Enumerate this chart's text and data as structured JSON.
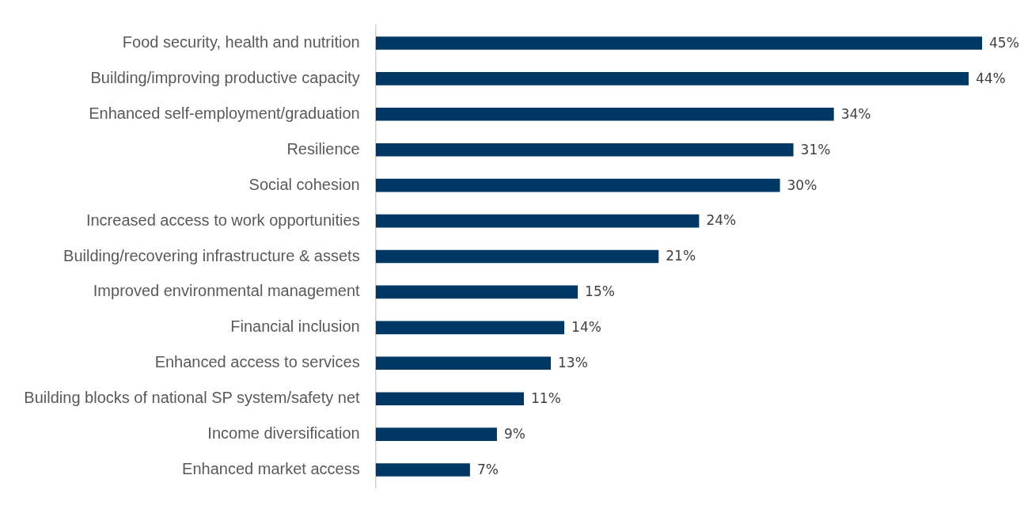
{
  "chart_data": {
    "type": "bar",
    "orientation": "horizontal",
    "categories": [
      "Food security, health and nutrition",
      "Building/improving productive capacity",
      "Enhanced self-employment/graduation",
      "Resilience",
      "Social cohesion",
      "Increased access to work opportunities",
      "Building/recovering infrastructure & assets",
      "Improved environmental management",
      "Financial inclusion",
      "Enhanced access to services",
      "Building blocks of national SP system/safety net",
      "Income diversification",
      "Enhanced market access"
    ],
    "values": [
      45,
      44,
      34,
      31,
      30,
      24,
      21,
      15,
      14,
      13,
      11,
      9,
      7
    ],
    "value_labels": [
      "45%",
      "44%",
      "34%",
      "31%",
      "30%",
      "24%",
      "21%",
      "15%",
      "14%",
      "13%",
      "11%",
      "9%",
      "7%"
    ],
    "color": "#003865",
    "tick_labels": "y",
    "grid": false,
    "legend": false
  }
}
